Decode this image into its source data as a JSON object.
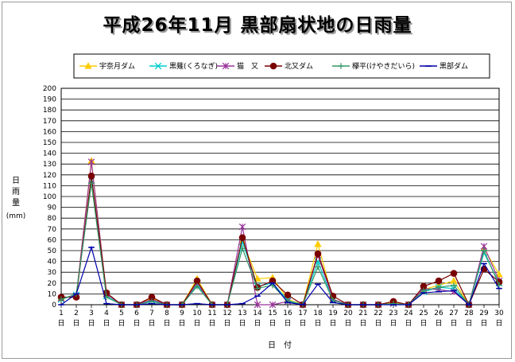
{
  "chart_data": {
    "type": "line",
    "title": "平成26年11月 黒部扇状地の日雨量",
    "ylabel": [
      "日",
      "雨",
      "量"
    ],
    "yunit": "(mm)",
    "xlabel": "日　付",
    "ylim": [
      0,
      200
    ],
    "yticks": [
      0,
      10,
      20,
      30,
      40,
      50,
      60,
      70,
      80,
      90,
      100,
      110,
      120,
      130,
      140,
      150,
      160,
      170,
      180,
      190,
      200
    ],
    "categories": [
      "1",
      "2",
      "3",
      "4",
      "5",
      "6",
      "7",
      "8",
      "9",
      "10",
      "11",
      "12",
      "13",
      "14",
      "15",
      "16",
      "17",
      "18",
      "19",
      "20",
      "21",
      "22",
      "23",
      "24",
      "25",
      "26",
      "27",
      "28",
      "29",
      "30"
    ],
    "category_suffix": "日",
    "grid": true,
    "legend_position": "top",
    "series": [
      {
        "name": "宇奈月ダム",
        "color": "#ffcc00",
        "marker": "triangle",
        "values": [
          6,
          8,
          133,
          10,
          0,
          0,
          6,
          0,
          0,
          24,
          0,
          0,
          59,
          24,
          25,
          5,
          0,
          56,
          5,
          0,
          0,
          0,
          2,
          0,
          14,
          18,
          22,
          0,
          52,
          28
        ]
      },
      {
        "name": "黒薙(くろなぎ)",
        "color": "#00cccc",
        "marker": "x",
        "values": [
          5,
          9,
          115,
          8,
          0,
          0,
          4,
          0,
          0,
          18,
          0,
          0,
          58,
          17,
          20,
          4,
          0,
          40,
          4,
          0,
          0,
          0,
          1,
          0,
          12,
          16,
          15,
          0,
          48,
          20
        ]
      },
      {
        "name": "猫　又",
        "color": "#993399",
        "marker": "star",
        "values": [
          6,
          8,
          132,
          10,
          0,
          0,
          5,
          0,
          0,
          20,
          0,
          0,
          72,
          0,
          0,
          3,
          0,
          46,
          5,
          0,
          0,
          0,
          1,
          0,
          15,
          14,
          12,
          0,
          54,
          22
        ]
      },
      {
        "name": "北又ダム",
        "color": "#7a0000",
        "marker": "circle",
        "values": [
          7,
          7,
          119,
          11,
          0,
          0,
          7,
          0,
          0,
          22,
          0,
          0,
          62,
          16,
          22,
          9,
          0,
          47,
          8,
          0,
          0,
          0,
          3,
          0,
          17,
          22,
          29,
          0,
          33,
          21
        ]
      },
      {
        "name": "欅平(けやきだいら)",
        "color": "#339966",
        "marker": "plus",
        "values": [
          5,
          10,
          112,
          7,
          0,
          0,
          3,
          0,
          0,
          17,
          0,
          0,
          52,
          15,
          18,
          3,
          0,
          35,
          4,
          0,
          0,
          0,
          1,
          0,
          13,
          16,
          18,
          0,
          50,
          18
        ]
      },
      {
        "name": "黒部ダム",
        "color": "#0000aa",
        "marker": "dash",
        "values": [
          0,
          10,
          53,
          1,
          0,
          0,
          1,
          0,
          0,
          1,
          0,
          0,
          1,
          8,
          20,
          2,
          0,
          19,
          2,
          0,
          0,
          0,
          0,
          0,
          11,
          12,
          13,
          0,
          38,
          15
        ]
      }
    ]
  }
}
